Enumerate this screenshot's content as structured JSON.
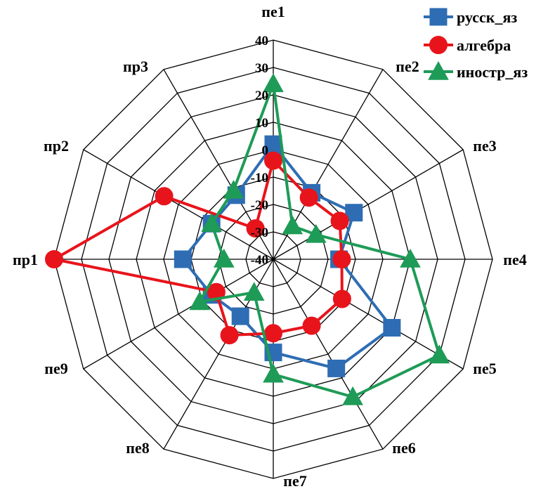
{
  "chart_data": {
    "type": "radar",
    "categories": [
      "пе1",
      "пе2",
      "пе3",
      "пе4",
      "пе5",
      "пе6",
      "пе7",
      "пе8",
      "пе9",
      "пр1",
      "пр2",
      "пр3"
    ],
    "rlim": [
      -40,
      40
    ],
    "ticks": [
      -40,
      -30,
      -20,
      -10,
      0,
      10,
      20,
      30,
      40
    ],
    "tick_labels": [
      "-40",
      "-30",
      "-20",
      "-10",
      "0",
      "10",
      "20",
      "30",
      "40"
    ],
    "grid": true,
    "legend": "top-right",
    "series": [
      {
        "name": "русск_яз",
        "color": "#2E6DB4",
        "marker": "square",
        "values": [
          2,
          -12,
          -6,
          -16,
          10,
          6,
          -6,
          -16,
          -14,
          -7,
          -14,
          -13
        ]
      },
      {
        "name": "алгебра",
        "color": "#E8141B",
        "marker": "circle",
        "values": [
          -4,
          -14,
          -12,
          -15,
          -11,
          -12,
          -13,
          -8,
          -16,
          40,
          6,
          -27
        ]
      },
      {
        "name": "иностр_яз",
        "color": "#1E9B57",
        "marker": "triangle",
        "values": [
          24,
          -26,
          -22,
          10,
          30,
          18,
          2,
          -26,
          -9,
          -22,
          -14,
          -11
        ]
      }
    ]
  }
}
